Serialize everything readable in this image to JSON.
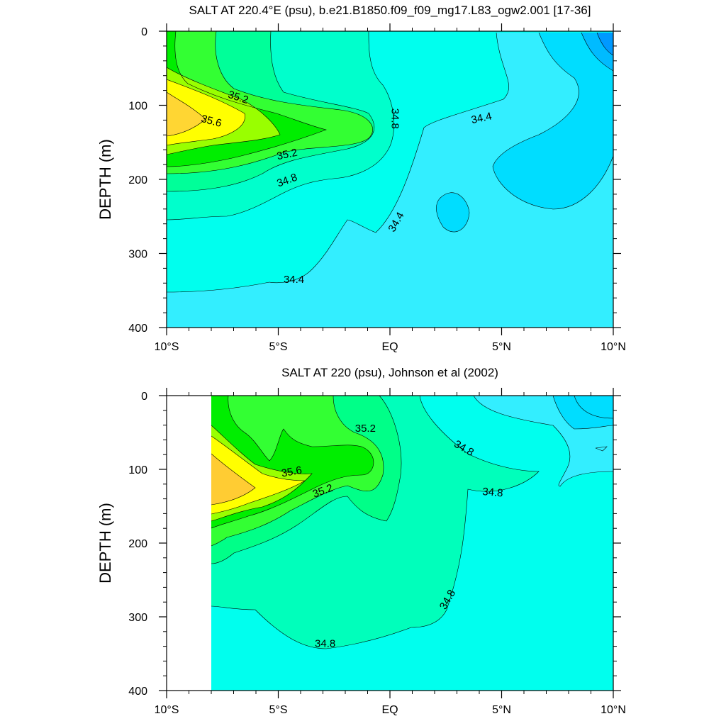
{
  "chart_data": [
    {
      "type": "contour",
      "title": "SALT AT 220.4°E (psu), b.e21.B1850.f09_f09_mg17.L83_ogw2.001 [17-36]",
      "ylabel": "DEPTH (m)",
      "xlabel": "",
      "xlim": [
        -10,
        10
      ],
      "ylim": [
        400,
        0
      ],
      "x_ticks": [
        {
          "value": -10,
          "label": "10°S"
        },
        {
          "value": -5,
          "label": "5°S"
        },
        {
          "value": 0,
          "label": "EQ"
        },
        {
          "value": 5,
          "label": "5°N"
        },
        {
          "value": 10,
          "label": "10°N"
        }
      ],
      "y_ticks": [
        {
          "value": 0,
          "label": "0"
        },
        {
          "value": 100,
          "label": "100"
        },
        {
          "value": 200,
          "label": "200"
        },
        {
          "value": 300,
          "label": "300"
        },
        {
          "value": 400,
          "label": "400"
        }
      ],
      "contour_levels": [
        34.2,
        34.4,
        34.6,
        34.8,
        35.0,
        35.2,
        35.4,
        35.6,
        35.8
      ],
      "contour_labels": [
        {
          "value": "35.2",
          "x": -6.8,
          "depth": 90,
          "rotate": 18
        },
        {
          "value": "35.6",
          "x": -8.0,
          "depth": 122,
          "rotate": 15
        },
        {
          "value": "35.2",
          "x": -4.6,
          "depth": 167,
          "rotate": -12
        },
        {
          "value": "34.8",
          "x": -4.6,
          "depth": 202,
          "rotate": -20
        },
        {
          "value": "34.8",
          "x": 0.2,
          "depth": 118,
          "rotate": 90
        },
        {
          "value": "34.4",
          "x": 4.1,
          "depth": 118,
          "rotate": -12
        },
        {
          "value": "34.4",
          "x": 0.3,
          "depth": 258,
          "rotate": -60
        },
        {
          "value": "34.4",
          "x": -4.3,
          "depth": 336,
          "rotate": 0
        }
      ]
    },
    {
      "type": "contour",
      "title": "SALT AT 220 (psu), Johnson et al (2002)",
      "ylabel": "DEPTH (m)",
      "xlabel": "",
      "xlim": [
        -10,
        10
      ],
      "ylim": [
        400,
        0
      ],
      "x_ticks": [
        {
          "value": -10,
          "label": "10°S"
        },
        {
          "value": -5,
          "label": "5°S"
        },
        {
          "value": 0,
          "label": "EQ"
        },
        {
          "value": 5,
          "label": "5°N"
        },
        {
          "value": 10,
          "label": "10°N"
        }
      ],
      "y_ticks": [
        {
          "value": 0,
          "label": "0"
        },
        {
          "value": 100,
          "label": "100"
        },
        {
          "value": 200,
          "label": "200"
        },
        {
          "value": 300,
          "label": "300"
        },
        {
          "value": 400,
          "label": "400"
        }
      ],
      "data_start_x": -8,
      "contour_levels": [
        34.2,
        34.4,
        34.6,
        34.8,
        35.0,
        35.2,
        35.4,
        35.6,
        35.8
      ],
      "contour_labels": [
        {
          "value": "35.2",
          "x": -1.1,
          "depth": 45,
          "rotate": 0
        },
        {
          "value": "35.6",
          "x": -4.4,
          "depth": 104,
          "rotate": -10
        },
        {
          "value": "35.2",
          "x": -3.0,
          "depth": 130,
          "rotate": -20
        },
        {
          "value": "34.8",
          "x": 3.3,
          "depth": 72,
          "rotate": 30
        },
        {
          "value": "34.8",
          "x": 4.6,
          "depth": 132,
          "rotate": 5
        },
        {
          "value": "34.8",
          "x": 2.6,
          "depth": 277,
          "rotate": -60
        },
        {
          "value": "34.8",
          "x": -2.9,
          "depth": 337,
          "rotate": 0
        }
      ]
    }
  ]
}
